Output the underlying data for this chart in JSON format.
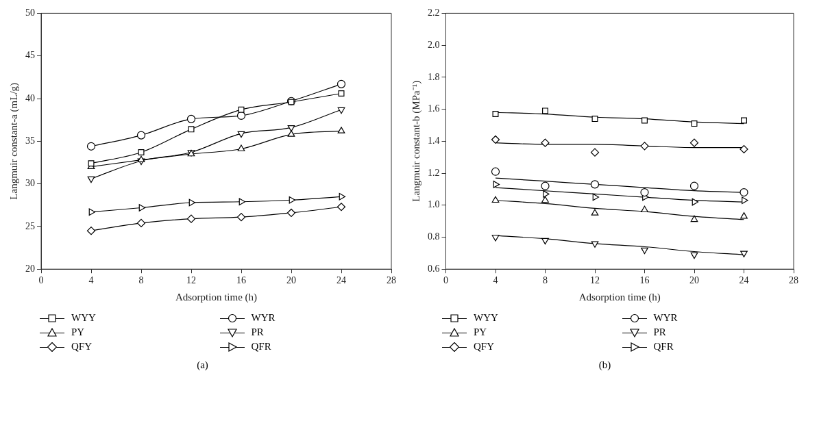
{
  "chart_data": [
    {
      "type": "line",
      "xlabel": "Adsorption time (h)",
      "ylabel": "Langmuir constant-a (mL/g)",
      "xlim": [
        0,
        28
      ],
      "xticks": [
        0,
        4,
        8,
        12,
        16,
        20,
        24,
        28
      ],
      "ylim": [
        20,
        50
      ],
      "yticks": [
        20,
        25,
        30,
        35,
        40,
        45,
        50
      ],
      "grid": false,
      "legend": "bottom",
      "annotations": [
        "(a)"
      ],
      "x": [
        4,
        8,
        12,
        16,
        20,
        24
      ],
      "series": [
        {
          "name": "WYY",
          "color": "#000000",
          "marker": "square",
          "values": [
            32.4,
            33.7,
            36.4,
            38.7,
            39.6,
            40.6
          ]
        },
        {
          "name": "WYR",
          "color": "#000000",
          "marker": "circle",
          "values": [
            34.4,
            35.7,
            37.6,
            38.0,
            39.7,
            41.7
          ]
        },
        {
          "name": "PY",
          "color": "#000000",
          "marker": "triangle",
          "values": [
            32.0,
            32.8,
            33.5,
            34.1,
            35.8,
            36.2
          ]
        },
        {
          "name": "PR",
          "color": "#000000",
          "marker": "triangle-down",
          "values": [
            30.6,
            32.7,
            33.7,
            35.9,
            36.6,
            38.7
          ]
        },
        {
          "name": "QFY",
          "color": "#000000",
          "marker": "diamond",
          "values": [
            24.5,
            25.4,
            25.9,
            26.1,
            26.6,
            27.3
          ]
        },
        {
          "name": "QFR",
          "color": "#000000",
          "marker": "triangle-right",
          "values": [
            26.7,
            27.2,
            27.8,
            27.9,
            28.1,
            28.5
          ]
        }
      ]
    },
    {
      "type": "scatter",
      "xlabel": "Adsorption time (h)",
      "ylabel": "Langmuir constant-b (MPa⁻¹)",
      "xlim": [
        0,
        28
      ],
      "xticks": [
        0,
        4,
        8,
        12,
        16,
        20,
        24,
        28
      ],
      "ylim": [
        0.6,
        2.2
      ],
      "yticks": [
        0.6,
        0.8,
        {
          "value": 1,
          "label": "1.0"
        },
        1.2,
        1.4,
        1.6,
        1.8,
        {
          "value": 2,
          "label": "2.0"
        },
        2.2
      ],
      "grid": false,
      "legend": "bottom",
      "annotations": [
        "(b)"
      ],
      "x": [
        4,
        8,
        12,
        16,
        20,
        24
      ],
      "series": [
        {
          "name": "WYY",
          "color": "#000000",
          "marker": "square",
          "values": [
            1.57,
            1.59,
            1.54,
            1.53,
            1.51,
            1.53
          ]
        },
        {
          "name": "WYR",
          "color": "#000000",
          "marker": "circle",
          "values": [
            1.21,
            1.12,
            1.13,
            1.08,
            1.12,
            1.08
          ]
        },
        {
          "name": "PY",
          "color": "#000000",
          "marker": "triangle",
          "values": [
            1.03,
            1.03,
            0.95,
            0.97,
            0.91,
            0.93
          ]
        },
        {
          "name": "PR",
          "color": "#000000",
          "marker": "triangle-down",
          "values": [
            0.8,
            0.78,
            0.76,
            0.72,
            0.69,
            0.7
          ]
        },
        {
          "name": "QFY",
          "color": "#000000",
          "marker": "diamond",
          "values": [
            1.41,
            1.39,
            1.33,
            1.37,
            1.39,
            1.35
          ]
        },
        {
          "name": "QFR",
          "color": "#000000",
          "marker": "triangle-right",
          "values": [
            1.13,
            1.07,
            1.05,
            1.05,
            1.02,
            1.03
          ]
        },
        {
          "type": "line",
          "color": "#000000",
          "marker": "none",
          "values": [
            1.58,
            1.57,
            1.55,
            1.54,
            1.52,
            1.51
          ]
        },
        {
          "type": "line",
          "color": "#000000",
          "marker": "none",
          "values": [
            1.39,
            1.38,
            1.38,
            1.37,
            1.36,
            1.36
          ]
        },
        {
          "type": "line",
          "color": "#000000",
          "marker": "none",
          "values": [
            1.17,
            1.15,
            1.13,
            1.11,
            1.09,
            1.08
          ]
        },
        {
          "type": "line",
          "color": "#000000",
          "marker": "none",
          "values": [
            1.11,
            1.09,
            1.07,
            1.05,
            1.03,
            1.02
          ]
        },
        {
          "type": "line",
          "color": "#000000",
          "marker": "none",
          "values": [
            1.03,
            1.01,
            0.98,
            0.96,
            0.93,
            0.91
          ]
        },
        {
          "type": "line",
          "color": "#000000",
          "marker": "none",
          "values": [
            0.81,
            0.79,
            0.76,
            0.74,
            0.71,
            0.69
          ]
        }
      ]
    }
  ]
}
